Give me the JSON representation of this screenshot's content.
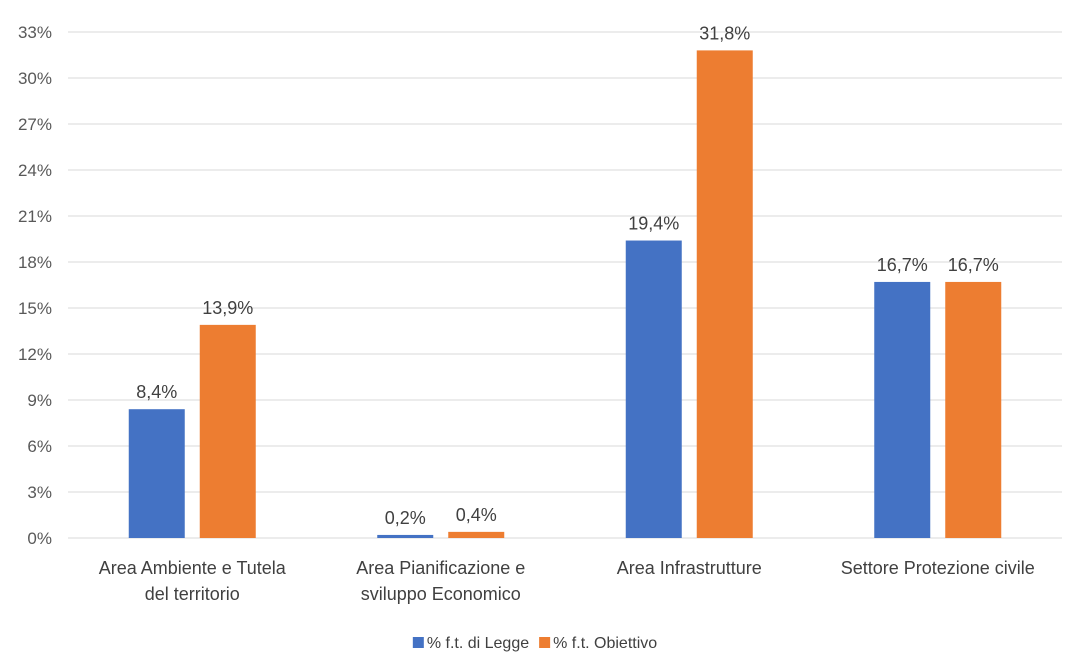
{
  "chart_data": {
    "type": "bar",
    "title": "",
    "xlabel": "",
    "ylabel": "",
    "categories": [
      [
        "Area Ambiente e Tutela",
        "del territorio"
      ],
      [
        "Area Pianificazione e",
        "sviluppo Economico"
      ],
      [
        "Area Infrastrutture"
      ],
      [
        "Settore Protezione civile"
      ]
    ],
    "series": [
      {
        "name": "%  f.t. di Legge",
        "color": "#4472C4",
        "values": [
          8.4,
          0.2,
          19.4,
          16.7
        ],
        "labels": [
          "8,4%",
          "0,2%",
          "19,4%",
          "16,7%"
        ]
      },
      {
        "name": "% f.t. Obiettivo",
        "color": "#ED7D31",
        "values": [
          13.9,
          0.4,
          31.8,
          16.7
        ],
        "labels": [
          "13,9%",
          "0,4%",
          "31,8%",
          "16,7%"
        ]
      }
    ],
    "ylim": [
      0,
      33
    ],
    "yticks": [
      0,
      3,
      6,
      9,
      12,
      15,
      18,
      21,
      24,
      27,
      30,
      33
    ],
    "ytick_labels": [
      "0%",
      "3%",
      "6%",
      "9%",
      "12%",
      "15%",
      "18%",
      "21%",
      "24%",
      "27%",
      "30%",
      "33%"
    ],
    "grid": true,
    "gridcolor": "#D9D9D9",
    "legend_position": "bottom"
  }
}
